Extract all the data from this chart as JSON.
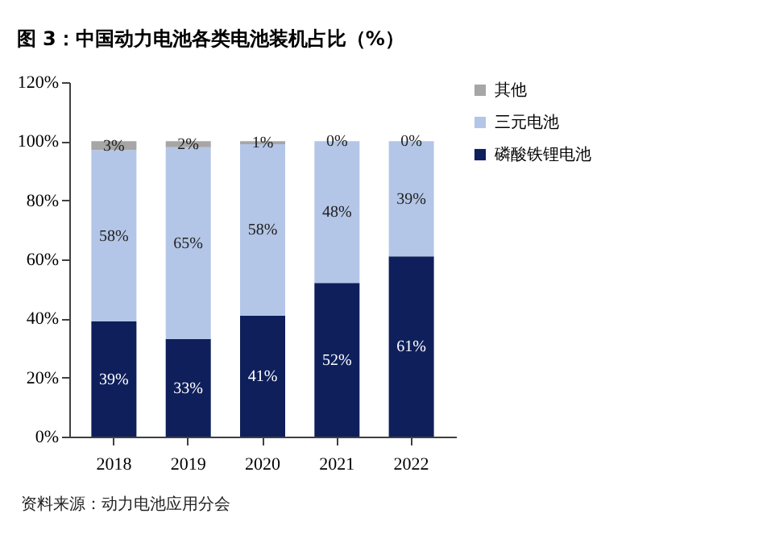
{
  "chart_data": {
    "type": "bar",
    "title": "图 3：中国动力电池各类电池装机占比（%）",
    "categories": [
      "2018",
      "2019",
      "2020",
      "2021",
      "2022"
    ],
    "series": [
      {
        "name": "磷酸铁锂电池",
        "color": "#0e1f5b",
        "values": [
          39,
          33,
          41,
          52,
          61
        ],
        "value_labels": [
          "39%",
          "33%",
          "41%",
          "52%",
          "61%"
        ]
      },
      {
        "name": "三元电池",
        "color": "#b4c6e7",
        "values": [
          58,
          65,
          58,
          48,
          39
        ],
        "value_labels": [
          "58%",
          "65%",
          "58%",
          "48%",
          "39%"
        ]
      },
      {
        "name": "其他",
        "color": "#a6a6a6",
        "values": [
          3,
          2,
          1,
          0,
          0
        ],
        "value_labels": [
          "3%",
          "2%",
          "1%",
          "0%",
          "0%"
        ]
      }
    ],
    "stacked": true,
    "ylim": [
      0,
      120
    ],
    "yticks": [
      {
        "value": 0,
        "label": "0%"
      },
      {
        "value": 20,
        "label": "20%"
      },
      {
        "value": 40,
        "label": "40%"
      },
      {
        "value": 60,
        "label": "60%"
      },
      {
        "value": 80,
        "label": "80%"
      },
      {
        "value": 100,
        "label": "100%"
      },
      {
        "value": 120,
        "label": "120%"
      }
    ],
    "legend": "right",
    "grid": false,
    "annotations": [
      "资料来源：动力电池应用分会"
    ]
  }
}
